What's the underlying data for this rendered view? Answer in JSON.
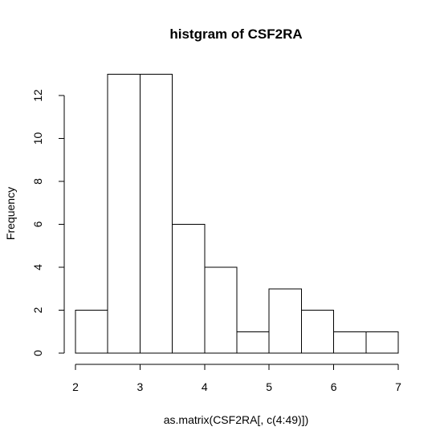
{
  "chart_data": {
    "type": "bar",
    "title": "histgram of CSF2RA",
    "xlabel": "as.matrix(CSF2RA[, c(4:49)])",
    "ylabel": "Frequency",
    "bins": [
      {
        "from": 2.0,
        "to": 2.5,
        "count": 2
      },
      {
        "from": 2.5,
        "to": 3.0,
        "count": 13
      },
      {
        "from": 3.0,
        "to": 3.5,
        "count": 13
      },
      {
        "from": 3.5,
        "to": 4.0,
        "count": 6
      },
      {
        "from": 4.0,
        "to": 4.5,
        "count": 4
      },
      {
        "from": 4.5,
        "to": 5.0,
        "count": 1
      },
      {
        "from": 5.0,
        "to": 5.5,
        "count": 3
      },
      {
        "from": 5.5,
        "to": 6.0,
        "count": 2
      },
      {
        "from": 6.0,
        "to": 6.5,
        "count": 1
      },
      {
        "from": 6.5,
        "to": 7.0,
        "count": 1
      }
    ],
    "xlim": [
      2,
      7
    ],
    "ylim": [
      0,
      13
    ],
    "x_ticks": [
      2,
      3,
      4,
      5,
      6,
      7
    ],
    "y_ticks": [
      0,
      2,
      4,
      6,
      8,
      10,
      12
    ],
    "grid": false,
    "bar_fill": "#ffffff",
    "bar_stroke": "#000000"
  }
}
